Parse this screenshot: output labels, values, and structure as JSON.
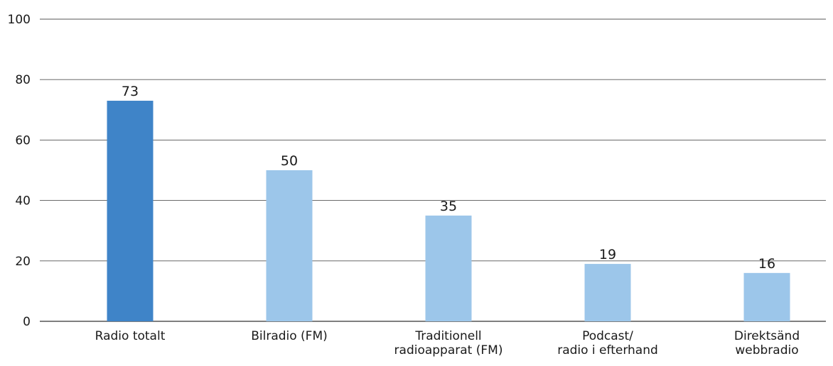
{
  "chart_data": {
    "type": "bar",
    "categories": [
      [
        "Radio totalt"
      ],
      [
        "Bilradio (FM)"
      ],
      [
        "Traditionell",
        "radioapparat (FM)"
      ],
      [
        "Podcast/",
        "radio i efterhand"
      ],
      [
        "Direktsänd",
        "webbradio"
      ]
    ],
    "values": [
      73,
      50,
      35,
      19,
      16
    ],
    "value_labels": [
      "73",
      "50",
      "35",
      "19",
      "16"
    ],
    "ylim": [
      0,
      100
    ],
    "yticks": [
      0,
      20,
      40,
      60,
      80,
      100
    ],
    "ytick_labels": [
      "0",
      "20",
      "40",
      "60",
      "80",
      "100"
    ],
    "grid": true,
    "colors": {
      "highlight": "#3f84c8",
      "bar": "#9cc6ea",
      "gridline": "#555555",
      "axis": "#333333"
    },
    "highlight_index": 0
  }
}
